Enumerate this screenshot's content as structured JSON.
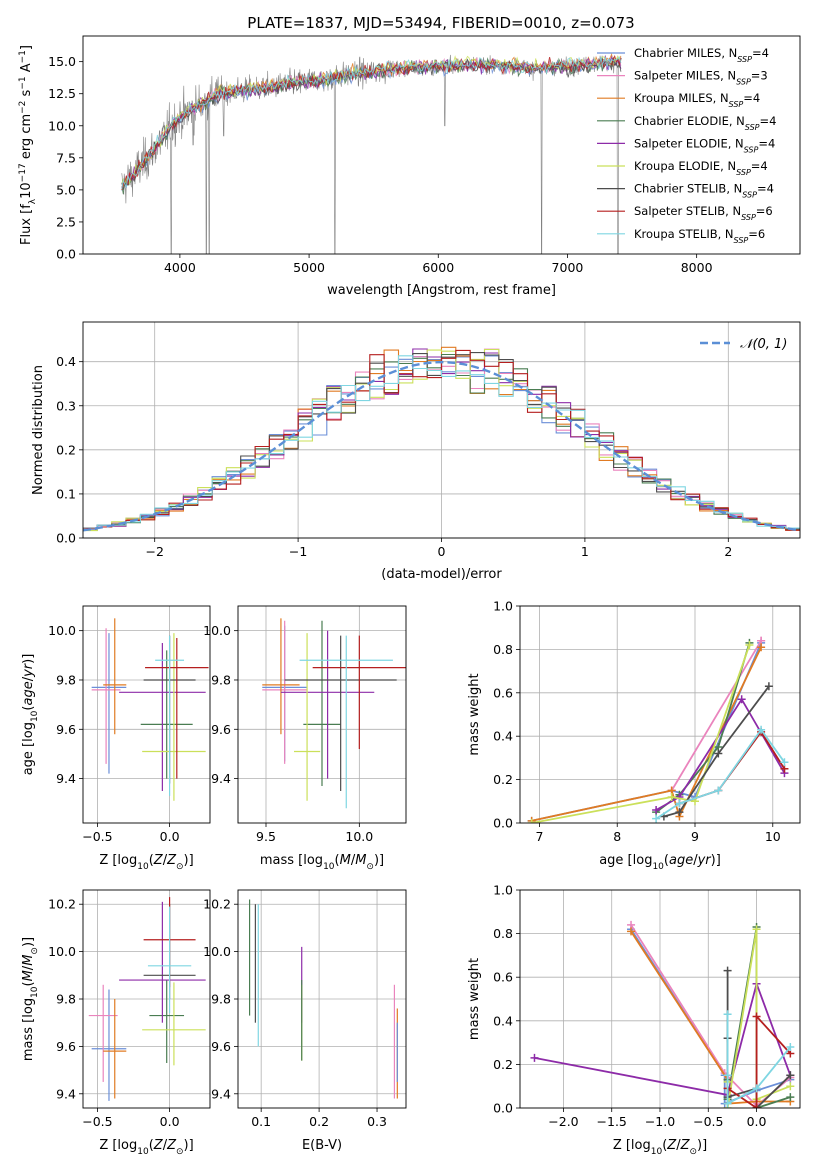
{
  "figure": {
    "title": "PLATE=1837, MJD=53494, FIBERID=0010, z=0.073"
  },
  "legend_entries": [
    {
      "label": "Chabrier MILES, N",
      "sub": "SSP",
      "suffix": "=4",
      "color": "#6b8fd8"
    },
    {
      "label": "Salpeter MILES, N",
      "sub": "SSP",
      "suffix": "=3",
      "color": "#ea84bd"
    },
    {
      "label": "Kroupa MILES, N",
      "sub": "SSP",
      "suffix": "=4",
      "color": "#e07b23"
    },
    {
      "label": "Chabrier ELODIE, N",
      "sub": "SSP",
      "suffix": "=4",
      "color": "#4a7d52"
    },
    {
      "label": "Salpeter ELODIE, N",
      "sub": "SSP",
      "suffix": "=4",
      "color": "#8d2ba8"
    },
    {
      "label": "Kroupa ELODIE, N",
      "sub": "SSP",
      "suffix": "=4",
      "color": "#cbe05a"
    },
    {
      "label": "Chabrier STELIB, N",
      "sub": "SSP",
      "suffix": "=4",
      "color": "#4d4d4d"
    },
    {
      "label": "Salpeter STELIB, N",
      "sub": "SSP",
      "suffix": "=6",
      "color": "#b51f1f"
    },
    {
      "label": "Kroupa STELIB, N",
      "sub": "SSP",
      "suffix": "=6",
      "color": "#7fd6e2"
    }
  ],
  "chart_data": [
    {
      "id": "spectrum",
      "type": "line",
      "xlabel": "wavelength [Angstrom, rest frame]",
      "ylabel": "Flux [f_λ 10^-17 erg cm^-2 s^-1 A^-1]",
      "xlim": [
        3250,
        8800
      ],
      "ylim": [
        0,
        17
      ],
      "xticks": [
        4000,
        5000,
        6000,
        7000,
        8000
      ],
      "yticks": [
        0.0,
        2.5,
        5.0,
        7.5,
        10.0,
        12.5,
        15.0
      ],
      "data_color": "#808080",
      "continuum": {
        "x": [
          3550,
          3650,
          3750,
          3850,
          3950,
          4050,
          4150,
          4300,
          4500,
          4700,
          4900,
          5100,
          5300,
          5500,
          5700,
          5900,
          6100,
          6300,
          6500,
          6700,
          6900,
          7100,
          7300,
          7400
        ],
        "y": [
          5.2,
          6.3,
          7.5,
          8.8,
          10.2,
          11.0,
          11.6,
          12.5,
          12.8,
          13.0,
          13.4,
          13.6,
          14.0,
          14.2,
          14.5,
          14.6,
          14.7,
          14.8,
          14.7,
          14.5,
          14.6,
          14.7,
          14.9,
          15.0
        ]
      },
      "absorption_lines": [
        {
          "x": 3933,
          "y": 0.0
        },
        {
          "x": 4101,
          "y": 8.5
        },
        {
          "x": 4205,
          "y": 0.0
        },
        {
          "x": 4226,
          "y": 0.0
        },
        {
          "x": 4340,
          "y": 9.2
        },
        {
          "x": 5200,
          "y": 0.0
        },
        {
          "x": 6050,
          "y": 10.0
        },
        {
          "x": 6800,
          "y": 0.0
        },
        {
          "x": 7390,
          "y": 0.0
        }
      ]
    },
    {
      "id": "residuals",
      "type": "line",
      "xlabel": "(data-model)/error",
      "ylabel": "Normed distribution",
      "xlim": [
        -2.5,
        2.5
      ],
      "ylim": [
        0,
        0.49
      ],
      "xticks": [
        -2,
        -1,
        0,
        1,
        2
      ],
      "yticks": [
        0.0,
        0.1,
        0.2,
        0.3,
        0.4
      ],
      "gaussian_label": "𝒩(0, 1)",
      "gaussian_color": "#5b8fd6",
      "bin_width": 0.1
    },
    {
      "id": "age-vs-Z",
      "type": "scatter",
      "xlabel": "Z [log10(Z/Z⊙)]",
      "ylabel": "age  [log10(age/yr)]",
      "xlim": [
        -0.6,
        0.28
      ],
      "ylim": [
        9.22,
        10.1
      ],
      "xticks": [
        -0.5,
        0.0
      ],
      "yticks": [
        9.4,
        9.6,
        9.8,
        10.0
      ],
      "points": [
        {
          "x": -0.42,
          "y": 9.77,
          "xerr": 0.12,
          "yerr": [
            0.35,
            0.22
          ],
          "color": "#6b8fd8"
        },
        {
          "x": -0.44,
          "y": 9.76,
          "xerr": 0.1,
          "yerr": [
            0.3,
            0.25
          ],
          "color": "#ea84bd"
        },
        {
          "x": -0.38,
          "y": 9.78,
          "xerr": 0.08,
          "yerr": [
            0.2,
            0.27
          ],
          "color": "#e07b23"
        },
        {
          "x": -0.02,
          "y": 9.62,
          "xerr": 0.18,
          "yerr": [
            0.22,
            0.3
          ],
          "color": "#4a7d52"
        },
        {
          "x": -0.05,
          "y": 9.75,
          "xerr": 0.3,
          "yerr": [
            0.4,
            0.2
          ],
          "color": "#8d2ba8"
        },
        {
          "x": 0.03,
          "y": 9.51,
          "xerr": 0.22,
          "yerr": [
            0.2,
            0.48
          ],
          "color": "#cbe05a"
        },
        {
          "x": 0.0,
          "y": 9.8,
          "xerr": 0.18,
          "yerr": [
            0.42,
            0.18
          ],
          "color": "#4d4d4d"
        },
        {
          "x": 0.05,
          "y": 9.85,
          "xerr": 0.22,
          "yerr": [
            0.45,
            0.12
          ],
          "color": "#b51f1f"
        },
        {
          "x": 0.0,
          "y": 9.88,
          "xerr": 0.1,
          "yerr": [
            0.55,
            0.1
          ],
          "color": "#7fd6e2"
        }
      ]
    },
    {
      "id": "age-vs-mass",
      "type": "scatter",
      "xlabel": "mass [log10(M/M⊙)]",
      "ylabel": "",
      "xlim": [
        9.35,
        10.25
      ],
      "ylim": [
        9.22,
        10.1
      ],
      "xticks": [
        9.5,
        10.0
      ],
      "yticks": [
        9.4,
        9.6,
        9.8,
        10.0
      ],
      "points": [
        {
          "x": 9.6,
          "y": 9.77,
          "xerr": 0.12,
          "yerr": [
            0.3,
            0.25
          ],
          "color": "#6b8fd8"
        },
        {
          "x": 9.6,
          "y": 9.76,
          "xerr": 0.12,
          "yerr": [
            0.3,
            0.28
          ],
          "color": "#ea84bd"
        },
        {
          "x": 9.58,
          "y": 9.78,
          "xerr": 0.1,
          "yerr": [
            0.2,
            0.27
          ],
          "color": "#e07b23"
        },
        {
          "x": 9.8,
          "y": 9.62,
          "xerr": 0.1,
          "yerr": [
            0.25,
            0.42
          ],
          "color": "#4a7d52"
        },
        {
          "x": 9.83,
          "y": 9.75,
          "xerr": 0.25,
          "yerr": [
            0.35,
            0.25
          ],
          "color": "#8d2ba8"
        },
        {
          "x": 9.72,
          "y": 9.51,
          "xerr": 0.07,
          "yerr": [
            0.2,
            0.48
          ],
          "color": "#cbe05a"
        },
        {
          "x": 9.9,
          "y": 9.8,
          "xerr": 0.3,
          "yerr": [
            0.45,
            0.18
          ],
          "color": "#4d4d4d"
        },
        {
          "x": 10.0,
          "y": 9.85,
          "xerr": 0.25,
          "yerr": [
            0.33,
            0.13
          ],
          "color": "#b51f1f"
        },
        {
          "x": 9.93,
          "y": 9.88,
          "xerr": 0.25,
          "yerr": [
            0.6,
            0.1
          ],
          "color": "#7fd6e2"
        }
      ]
    },
    {
      "id": "weight-vs-age",
      "type": "line",
      "xlabel": "age  [log10(age/yr)]",
      "ylabel": "mass weight",
      "xlim": [
        6.75,
        10.35
      ],
      "ylim": [
        0,
        1.0
      ],
      "xticks": [
        7,
        8,
        9,
        10
      ],
      "yticks": [
        0.0,
        0.2,
        0.4,
        0.6,
        0.8,
        1.0
      ],
      "series": [
        {
          "color": "#6b8fd8",
          "x": [
            6.9,
            8.7,
            9.0,
            9.85
          ],
          "y": [
            0.01,
            0.15,
            0.12,
            0.83
          ]
        },
        {
          "color": "#ea84bd",
          "x": [
            8.7,
            9.85,
            9.85
          ],
          "y": [
            0.15,
            0.84,
            0.84
          ]
        },
        {
          "color": "#e07b23",
          "x": [
            6.9,
            8.7,
            8.8,
            9.85
          ],
          "y": [
            0.01,
            0.15,
            0.03,
            0.81
          ]
        },
        {
          "color": "#4a7d52",
          "x": [
            8.5,
            8.8,
            9.3,
            9.7
          ],
          "y": [
            0.05,
            0.13,
            0.35,
            0.83
          ]
        },
        {
          "color": "#8d2ba8",
          "x": [
            8.5,
            8.8,
            9.6,
            10.15
          ],
          "y": [
            0.06,
            0.12,
            0.57,
            0.23
          ]
        },
        {
          "color": "#cbe05a",
          "x": [
            6.9,
            8.7,
            9.0,
            9.7
          ],
          "y": [
            0.0,
            0.12,
            0.1,
            0.82
          ]
        },
        {
          "color": "#4d4d4d",
          "x": [
            8.6,
            8.8,
            9.3,
            9.95
          ],
          "y": [
            0.03,
            0.05,
            0.32,
            0.63
          ]
        },
        {
          "color": "#b51f1f",
          "x": [
            8.8,
            9.3,
            9.85,
            10.15
          ],
          "y": [
            0.09,
            0.15,
            0.42,
            0.25
          ]
        },
        {
          "color": "#7fd6e2",
          "x": [
            8.5,
            8.8,
            9.3,
            9.85,
            10.15
          ],
          "y": [
            0.02,
            0.09,
            0.15,
            0.43,
            0.28
          ]
        }
      ]
    },
    {
      "id": "mass-vs-Z",
      "type": "scatter",
      "xlabel": "Z [log10(Z/Z⊙)]",
      "ylabel": "mass [log10(M/M⊙)]",
      "xlim": [
        -0.6,
        0.28
      ],
      "ylim": [
        9.34,
        10.26
      ],
      "xticks": [
        -0.5,
        0.0
      ],
      "yticks": [
        9.4,
        9.6,
        9.8,
        10.0,
        10.2
      ],
      "points": [
        {
          "x": -0.42,
          "y": 9.59,
          "xerr": 0.12,
          "yerr": [
            0.22,
            0.25
          ],
          "color": "#6b8fd8"
        },
        {
          "x": -0.46,
          "y": 9.73,
          "xerr": 0.1,
          "yerr": [
            0.28,
            0.13
          ],
          "color": "#ea84bd"
        },
        {
          "x": -0.38,
          "y": 9.58,
          "xerr": 0.08,
          "yerr": [
            0.2,
            0.22
          ],
          "color": "#e07b23"
        },
        {
          "x": -0.02,
          "y": 9.73,
          "xerr": 0.12,
          "yerr": [
            0.2,
            0.15
          ],
          "color": "#4a7d52"
        },
        {
          "x": -0.05,
          "y": 9.88,
          "xerr": 0.3,
          "yerr": [
            0.18,
            0.33
          ],
          "color": "#8d2ba8"
        },
        {
          "x": 0.03,
          "y": 9.67,
          "xerr": 0.22,
          "yerr": [
            0.15,
            0.2
          ],
          "color": "#cbe05a"
        },
        {
          "x": 0.0,
          "y": 9.9,
          "xerr": 0.18,
          "yerr": [
            0.1,
            0.3
          ],
          "color": "#4d4d4d"
        },
        {
          "x": 0.0,
          "y": 10.05,
          "xerr": 0.18,
          "yerr": [
            0.2,
            0.18
          ],
          "color": "#b51f1f"
        },
        {
          "x": 0.0,
          "y": 9.94,
          "xerr": 0.15,
          "yerr": [
            0.2,
            0.25
          ],
          "color": "#7fd6e2"
        }
      ]
    },
    {
      "id": "mass-vs-EBV",
      "type": "scatter",
      "xlabel": "E(B-V)",
      "ylabel": "",
      "xlim": [
        0.06,
        0.35
      ],
      "ylim": [
        9.34,
        10.26
      ],
      "xticks": [
        0.1,
        0.2,
        0.3
      ],
      "yticks": [
        9.4,
        9.6,
        9.8,
        10.0,
        10.2
      ],
      "points": [
        {
          "x": 0.08,
          "y": 9.98,
          "yerr": [
            0.25,
            0.24
          ],
          "color": "#4a7d52"
        },
        {
          "x": 0.09,
          "y": 9.95,
          "yerr": [
            0.25,
            0.25
          ],
          "color": "#4d4d4d"
        },
        {
          "x": 0.095,
          "y": 9.8,
          "yerr": [
            0.2,
            0.4
          ],
          "color": "#7fd6e2"
        },
        {
          "x": 0.17,
          "y": 9.86,
          "yerr": [
            0.16,
            0.16
          ],
          "color": "#8d2ba8"
        },
        {
          "x": 0.17,
          "y": 9.7,
          "yerr": [
            0.16,
            0.16
          ],
          "color": "#cbe05a"
        },
        {
          "x": 0.17,
          "y": 9.82,
          "yerr": [
            0.28,
            0.06
          ],
          "color": "#4a7d52"
        },
        {
          "x": 0.33,
          "y": 9.72,
          "yerr": [
            0.34,
            0.14
          ],
          "color": "#ea84bd"
        },
        {
          "x": 0.335,
          "y": 9.58,
          "yerr": [
            0.2,
            0.18
          ],
          "color": "#e07b23"
        },
        {
          "x": 0.335,
          "y": 9.6,
          "yerr": [
            0.15,
            0.1
          ],
          "color": "#6b8fd8"
        }
      ]
    },
    {
      "id": "weight-vs-Z",
      "type": "line",
      "xlabel": "Z [log10(Z/Z⊙)]",
      "ylabel": "mass weight",
      "xlim": [
        -2.45,
        0.45
      ],
      "ylim": [
        0,
        1.0
      ],
      "xticks": [
        -2.0,
        -1.5,
        -1.0,
        -0.5,
        0.0
      ],
      "yticks": [
        0.0,
        0.2,
        0.4,
        0.6,
        0.8,
        1.0
      ],
      "series": [
        {
          "color": "#6b8fd8",
          "x": [
            -1.3,
            -0.33,
            -0.33,
            0.0,
            0.35
          ],
          "y": [
            0.82,
            0.15,
            0.02,
            0.08,
            0.13
          ]
        },
        {
          "color": "#ea84bd",
          "x": [
            -1.3,
            -0.33,
            0.0,
            0.35
          ],
          "y": [
            0.84,
            0.16,
            0.01,
            0.14
          ]
        },
        {
          "color": "#e07b23",
          "x": [
            -1.3,
            -0.3,
            -0.3,
            0.0,
            0.35
          ],
          "y": [
            0.81,
            0.13,
            0.02,
            0.03,
            0.03
          ]
        },
        {
          "color": "#4a7d52",
          "x": [
            -0.3,
            -0.3,
            0.0,
            0.0,
            0.35
          ],
          "y": [
            0.13,
            0.04,
            0.83,
            0.0,
            0.05
          ]
        },
        {
          "color": "#8d2ba8",
          "x": [
            -2.3,
            -0.3,
            0.0,
            0.35
          ],
          "y": [
            0.23,
            0.06,
            0.57,
            0.15
          ]
        },
        {
          "color": "#cbe05a",
          "x": [
            -0.3,
            -0.3,
            0.0,
            0.0,
            0.35
          ],
          "y": [
            0.12,
            0.0,
            0.82,
            0.04,
            0.1
          ]
        },
        {
          "color": "#4d4d4d",
          "x": [
            -0.3,
            -0.3,
            -0.3,
            0.0,
            0.0,
            0.35
          ],
          "y": [
            0.63,
            0.32,
            0.05,
            0.09,
            0.0,
            0.15
          ]
        },
        {
          "color": "#b51f1f",
          "x": [
            -0.3,
            0.0,
            0.0,
            0.35
          ],
          "y": [
            0.09,
            0.0,
            0.42,
            0.25
          ]
        },
        {
          "color": "#7fd6e2",
          "x": [
            -0.3,
            -0.3,
            -0.3,
            0.0,
            0.35
          ],
          "y": [
            0.43,
            0.15,
            0.02,
            0.09,
            0.28
          ]
        }
      ]
    }
  ]
}
